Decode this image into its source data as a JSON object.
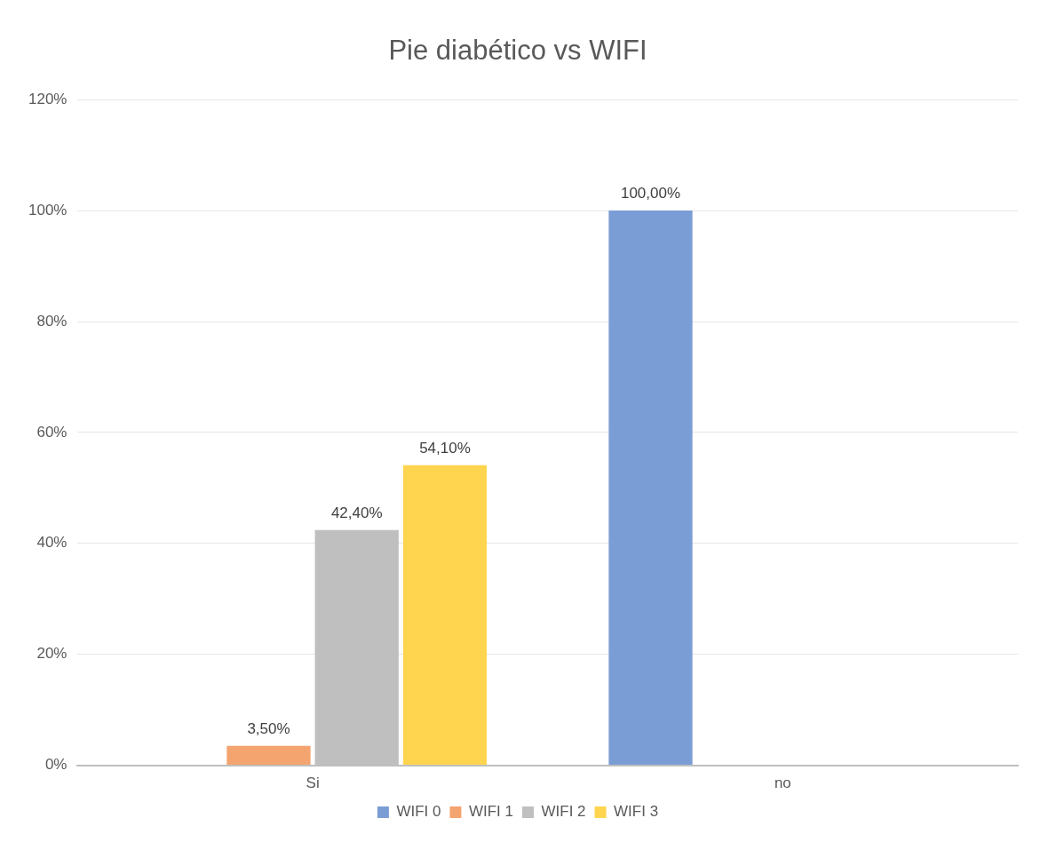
{
  "chart_data": {
    "type": "bar",
    "title": "Pie diabético vs WIFI",
    "categories": [
      "Si",
      "no"
    ],
    "series": [
      {
        "name": "WIFI 0",
        "color": "#7b9dd5",
        "values": [
          null,
          100
        ],
        "value_labels": [
          null,
          "100,00%"
        ]
      },
      {
        "name": "WIFI 1",
        "color": "#f4a46e",
        "values": [
          3.5,
          null
        ],
        "value_labels": [
          "3,50%",
          null
        ]
      },
      {
        "name": "WIFI 2",
        "color": "#bfbfbf",
        "values": [
          42.4,
          null
        ],
        "value_labels": [
          "42,40%",
          null
        ]
      },
      {
        "name": "WIFI 3",
        "color": "#ffd54f",
        "values": [
          54.1,
          null
        ],
        "value_labels": [
          "54,10%",
          null
        ]
      }
    ],
    "ylim": [
      0,
      120
    ],
    "yticks": [
      {
        "value": 0,
        "label": "0%"
      },
      {
        "value": 20,
        "label": "20%"
      },
      {
        "value": 40,
        "label": "40%"
      },
      {
        "value": 60,
        "label": "60%"
      },
      {
        "value": 80,
        "label": "80%"
      },
      {
        "value": 100,
        "label": "100%"
      },
      {
        "value": 120,
        "label": "120%"
      }
    ],
    "grid": "y",
    "legend": "bottom"
  }
}
